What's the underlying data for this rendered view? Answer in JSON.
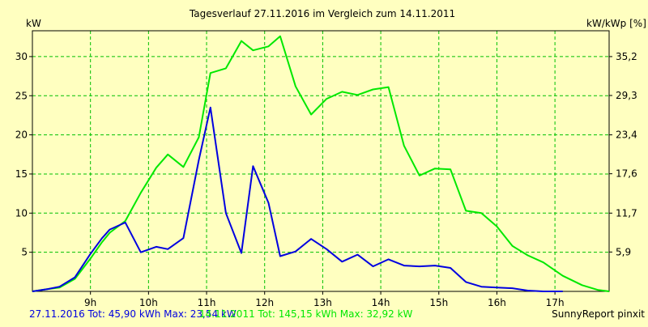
{
  "chart_data": {
    "type": "line",
    "title": "Tagesverlauf 27.11.2016 im Vergleich zum 14.11.2011",
    "ylabel_left": "kW",
    "ylabel_right": "kW/kWp [%]",
    "xlim": [
      8.0,
      17.933
    ],
    "ylim": [
      0,
      33.3
    ],
    "grid": true,
    "x_ticks": [
      {
        "value": 9,
        "label": "9h"
      },
      {
        "value": 10,
        "label": "10h"
      },
      {
        "value": 11,
        "label": "11h"
      },
      {
        "value": 12,
        "label": "12h"
      },
      {
        "value": 13,
        "label": "13h"
      },
      {
        "value": 14,
        "label": "14h"
      },
      {
        "value": 15,
        "label": "15h"
      },
      {
        "value": 16,
        "label": "16h"
      },
      {
        "value": 17,
        "label": "17h"
      }
    ],
    "y_ticks_left": [
      {
        "value": 5,
        "label": "5"
      },
      {
        "value": 10,
        "label": "10"
      },
      {
        "value": 15,
        "label": "15"
      },
      {
        "value": 20,
        "label": "20"
      },
      {
        "value": 25,
        "label": "25"
      },
      {
        "value": 30,
        "label": "30"
      }
    ],
    "y_ticks_right": [
      {
        "value": 5.03,
        "label": "5,9"
      },
      {
        "value": 10.0,
        "label": "11,7"
      },
      {
        "value": 15.03,
        "label": "17,6"
      },
      {
        "value": 20.0,
        "label": "23,4"
      },
      {
        "value": 25.03,
        "label": "29,3"
      },
      {
        "value": 30.0,
        "label": "35,2"
      }
    ],
    "series": [
      {
        "name": "27.11.2016",
        "color": "#0000E0",
        "x": [
          8.0,
          8.267,
          8.467,
          8.733,
          9.0,
          9.2,
          9.333,
          9.6,
          9.867,
          10.133,
          10.333,
          10.6,
          10.867,
          11.067,
          11.333,
          11.6,
          11.8,
          12.067,
          12.267,
          12.533,
          12.8,
          13.067,
          13.333,
          13.6,
          13.867,
          14.133,
          14.4,
          14.667,
          14.933,
          15.2,
          15.467,
          15.733,
          16.0,
          16.267,
          16.533,
          16.8,
          17.133
        ],
        "y": [
          0,
          0.3,
          0.6,
          1.8,
          4.8,
          6.8,
          7.9,
          8.8,
          5.0,
          5.7,
          5.4,
          6.8,
          16.8,
          23.5,
          10.0,
          4.9,
          16.0,
          11.3,
          4.5,
          5.1,
          6.7,
          5.4,
          3.8,
          4.7,
          3.2,
          4.1,
          3.3,
          3.2,
          3.3,
          3.0,
          1.2,
          0.6,
          0.5,
          0.4,
          0.1,
          0,
          0
        ]
      },
      {
        "name": "14.11.2011",
        "color": "#00E800",
        "x": [
          8.0,
          8.267,
          8.467,
          8.733,
          9.0,
          9.2,
          9.333,
          9.6,
          9.867,
          10.133,
          10.333,
          10.6,
          10.867,
          11.067,
          11.333,
          11.6,
          11.8,
          12.067,
          12.267,
          12.533,
          12.8,
          13.067,
          13.333,
          13.6,
          13.867,
          14.133,
          14.4,
          14.667,
          14.933,
          15.2,
          15.467,
          15.733,
          16.0,
          16.267,
          16.533,
          16.8,
          17.133,
          17.467,
          17.733,
          17.933
        ],
        "y": [
          0,
          0.3,
          0.5,
          1.6,
          4.2,
          6.3,
          7.5,
          9.0,
          12.6,
          15.8,
          17.5,
          15.9,
          19.7,
          27.9,
          28.5,
          32.0,
          30.8,
          31.3,
          32.6,
          26.2,
          22.6,
          24.6,
          25.5,
          25.1,
          25.8,
          26.1,
          18.6,
          14.8,
          15.7,
          15.6,
          10.3,
          10.0,
          8.3,
          5.8,
          4.6,
          3.7,
          2.0,
          0.8,
          0.2,
          0
        ]
      }
    ],
    "footer": {
      "series1_label": "27.11.2016 Tot: 45,90 kWh Max: 23,54 kW",
      "series2_label": "14.11.2011 Tot: 145,15 kWh Max: 32,92 kW",
      "credit": "SunnyReport pinxit"
    }
  },
  "colors": {
    "background": "#FFFFC0",
    "grid": "#00C000",
    "axis": "#000000",
    "series1": "#0000E0",
    "series2": "#00E800"
  }
}
